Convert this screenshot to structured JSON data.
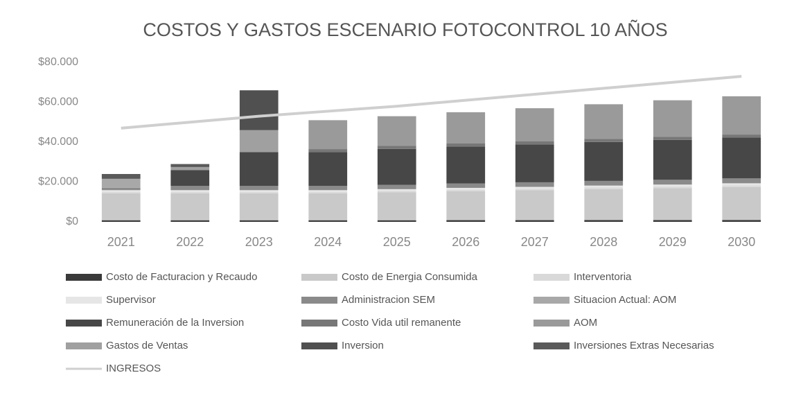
{
  "chart_data": {
    "type": "bar",
    "stacked": true,
    "title": "COSTOS Y GASTOS ESCENARIO FOTOCONTROL 10 AÑOS",
    "categories": [
      "2021",
      "2022",
      "2023",
      "2024",
      "2025",
      "2026",
      "2027",
      "2028",
      "2029",
      "2030"
    ],
    "ylim": [
      0,
      80000
    ],
    "yticks": [
      {
        "value": 0,
        "label": "$0"
      },
      {
        "value": 20000,
        "label": "$20.000"
      },
      {
        "value": 40000,
        "label": "$40.000"
      },
      {
        "value": 60000,
        "label": "$60.000"
      },
      {
        "value": 80000,
        "label": "$80.000"
      }
    ],
    "grid": false,
    "series": [
      {
        "name": "Costo de Facturacion y Recaudo",
        "color": "#3a3a3a",
        "values": [
          800,
          800,
          800,
          800,
          800,
          850,
          850,
          900,
          900,
          950
        ]
      },
      {
        "name": "Costo de Energia Consumida",
        "color": "#c9c9c9",
        "values": [
          13500,
          13500,
          13500,
          13500,
          14000,
          14500,
          15000,
          15500,
          16000,
          16500
        ]
      },
      {
        "name": "Interventoria",
        "color": "#d9d9d9",
        "values": [
          700,
          700,
          700,
          700,
          700,
          750,
          750,
          800,
          800,
          850
        ]
      },
      {
        "name": "Supervisor",
        "color": "#e6e6e6",
        "values": [
          900,
          900,
          900,
          900,
          900,
          950,
          950,
          1000,
          1000,
          1050
        ]
      },
      {
        "name": "Administracion SEM",
        "color": "#8a8a8a",
        "values": [
          1200,
          2100,
          2100,
          2100,
          2200,
          2250,
          2300,
          2350,
          2400,
          2450
        ]
      },
      {
        "name": "Situacion Actual: AOM",
        "color": "#a8a8a8",
        "values": [
          4500,
          0,
          0,
          0,
          0,
          0,
          0,
          0,
          0,
          0
        ]
      },
      {
        "name": "Remuneración de la Inversion",
        "color": "#474747",
        "values": [
          0,
          8000,
          17000,
          17000,
          18000,
          18500,
          19000,
          19500,
          20000,
          20500
        ]
      },
      {
        "name": "Costo Vida util remanente",
        "color": "#777777",
        "values": [
          0,
          0,
          0,
          1500,
          1500,
          1500,
          1500,
          1500,
          1500,
          1500
        ]
      },
      {
        "name": "AOM",
        "color": "#9a9a9a",
        "values": [
          0,
          0,
          0,
          14500,
          14900,
          15700,
          16650,
          17450,
          18400,
          19200
        ]
      },
      {
        "name": "Gastos de Ventas",
        "color": "#a0a0a0",
        "values": [
          0,
          1500,
          11000,
          0,
          0,
          0,
          0,
          0,
          0,
          0
        ]
      },
      {
        "name": "Inversion",
        "color": "#505050",
        "values": [
          0,
          0,
          20000,
          0,
          0,
          0,
          0,
          0,
          0,
          0
        ]
      },
      {
        "name": "Inversiones Extras Necesarias",
        "color": "#5a5a5a",
        "values": [
          2400,
          1500,
          0,
          0,
          0,
          0,
          0,
          0,
          0,
          0
        ]
      },
      {
        "name": "INGRESOS",
        "type": "line",
        "color": "#cfcfcf",
        "values": [
          47000,
          50000,
          53000,
          55500,
          58000,
          61000,
          64000,
          67000,
          70000,
          73000
        ]
      }
    ]
  }
}
